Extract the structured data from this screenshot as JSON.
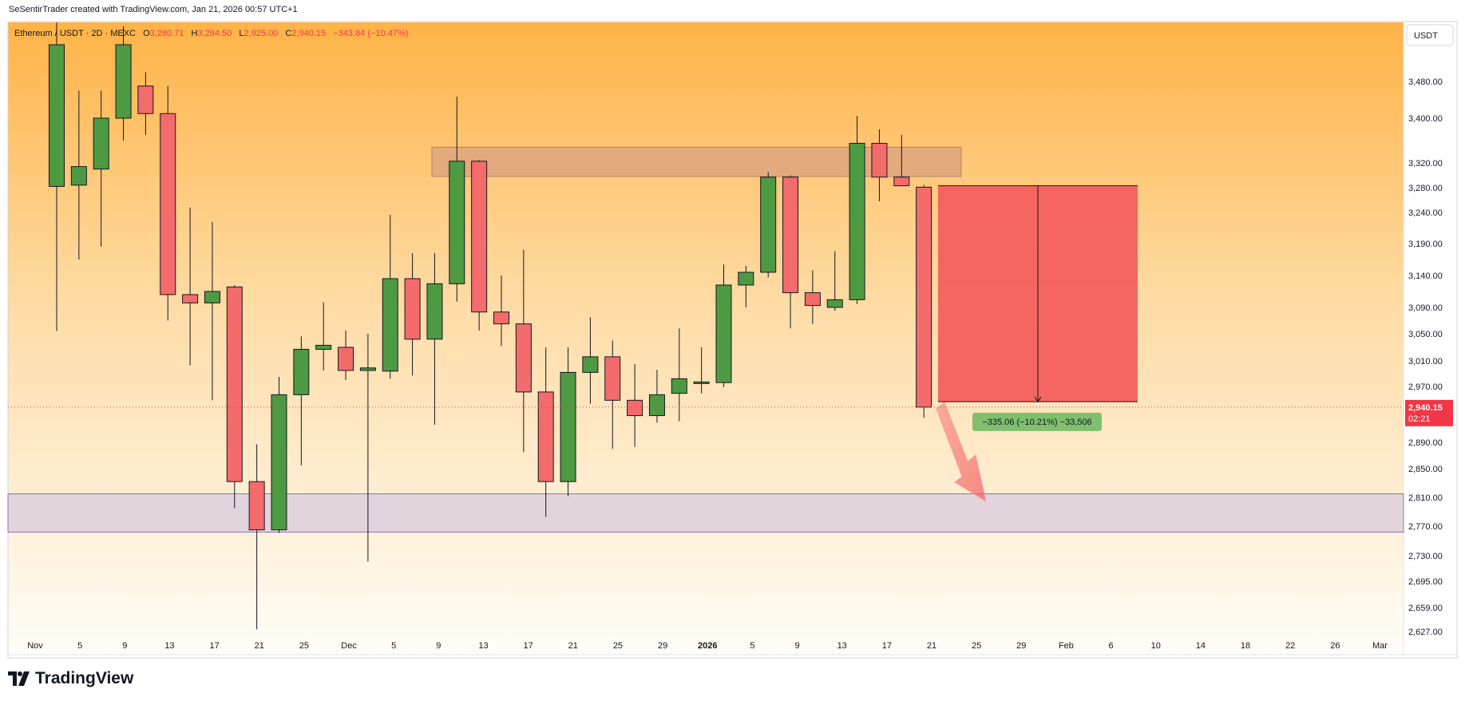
{
  "header": {
    "credit": "SeSentirTrader created with TradingView.com, Jan 21, 2026 00:57 UTC+1"
  },
  "chart_info": {
    "symbol": "Ethereum / USDT · 2D · MEXC",
    "ohlc": {
      "o_label": "O",
      "o": "3,280.71",
      "h_label": "H",
      "h": "3,284.50",
      "l_label": "L",
      "l": "2,925.00",
      "c_label": "C",
      "c": "2,940.15",
      "change": "−343.84 (−10.47%)"
    },
    "currency": "USDT"
  },
  "price_label": {
    "price": "2,940.15",
    "countdown": "02:21",
    "color": "#f23645"
  },
  "measure_label": "−335.06 (−10.21%) −33,506",
  "logo_text": "TradingView",
  "colors": {
    "up": "#4d9a43",
    "down": "#f36b6b",
    "bg_top": "#ffb347",
    "bg_bottom": "#fffdf8",
    "resistance": "#dea47e",
    "support": "#e2d4dd",
    "measure": "#f45b5b"
  },
  "chart_data": {
    "type": "candlestick",
    "y_axis_ticks": [
      "3,480.00",
      "3,400.00",
      "3,320.00",
      "3,280.00",
      "3,240.00",
      "3,190.00",
      "3,140.00",
      "3,090.00",
      "3,050.00",
      "3,010.00",
      "2,970.00",
      "2,890.00",
      "2,850.00",
      "2,810.00",
      "2,770.00",
      "2,730.00",
      "2,695.00",
      "2,659.00",
      "2,627.00"
    ],
    "x_axis_ticks": [
      "Nov",
      "5",
      "9",
      "13",
      "17",
      "21",
      "25",
      "Dec",
      "5",
      "9",
      "13",
      "17",
      "21",
      "25",
      "29",
      "2026",
      "5",
      "9",
      "13",
      "17",
      "21",
      "25",
      "29",
      "Feb",
      "6",
      "10",
      "14",
      "18",
      "22",
      "26",
      "Mar"
    ],
    "candles": [
      {
        "o": 3282,
        "h": 3650,
        "l": 3054,
        "c": 3560
      },
      {
        "o": 3284,
        "h": 3460,
        "l": 3165,
        "c": 3314
      },
      {
        "o": 3310,
        "h": 3460,
        "l": 3185,
        "c": 3400
      },
      {
        "o": 3400,
        "h": 3600,
        "l": 3360,
        "c": 3560
      },
      {
        "o": 3470,
        "h": 3500,
        "l": 3370,
        "c": 3410
      },
      {
        "o": 3410,
        "h": 3470,
        "l": 3070,
        "c": 3110
      },
      {
        "o": 3110,
        "h": 3248,
        "l": 3003,
        "c": 3097
      },
      {
        "o": 3097,
        "h": 3225,
        "l": 2950,
        "c": 3115
      },
      {
        "o": 3122,
        "h": 3125,
        "l": 2795,
        "c": 2832
      },
      {
        "o": 2832,
        "h": 2887,
        "l": 2630,
        "c": 2765
      },
      {
        "o": 2765,
        "h": 2985,
        "l": 2761,
        "c": 2958
      },
      {
        "o": 2958,
        "h": 3046,
        "l": 2855,
        "c": 3027
      },
      {
        "o": 3027,
        "h": 3098,
        "l": 2995,
        "c": 3033
      },
      {
        "o": 3030,
        "h": 3055,
        "l": 2980,
        "c": 2995
      },
      {
        "o": 2995,
        "h": 3050,
        "l": 2722,
        "c": 2999
      },
      {
        "o": 2994,
        "h": 3236,
        "l": 2982,
        "c": 3135
      },
      {
        "o": 3135,
        "h": 3175,
        "l": 2987,
        "c": 3042
      },
      {
        "o": 3042,
        "h": 3175,
        "l": 2915,
        "c": 3127
      },
      {
        "o": 3127,
        "h": 3447,
        "l": 3099,
        "c": 3323
      },
      {
        "o": 3323,
        "h": 3325,
        "l": 3055,
        "c": 3083
      },
      {
        "o": 3083,
        "h": 3140,
        "l": 3032,
        "c": 3065
      },
      {
        "o": 3065,
        "h": 3180,
        "l": 2875,
        "c": 2962
      },
      {
        "o": 2962,
        "h": 3030,
        "l": 2783,
        "c": 2832
      },
      {
        "o": 2832,
        "h": 3030,
        "l": 2812,
        "c": 2992
      },
      {
        "o": 2992,
        "h": 3075,
        "l": 2945,
        "c": 3016
      },
      {
        "o": 3016,
        "h": 3040,
        "l": 2880,
        "c": 2950
      },
      {
        "o": 2950,
        "h": 3005,
        "l": 2883,
        "c": 2928
      },
      {
        "o": 2928,
        "h": 2996,
        "l": 2918,
        "c": 2958
      },
      {
        "o": 2960,
        "h": 3058,
        "l": 2920,
        "c": 2982
      },
      {
        "o": 2977,
        "h": 3030,
        "l": 2960,
        "c": 2977
      },
      {
        "o": 2976,
        "h": 3157,
        "l": 2969,
        "c": 3125
      },
      {
        "o": 3125,
        "h": 3155,
        "l": 3090,
        "c": 3145
      },
      {
        "o": 3145,
        "h": 3305,
        "l": 3137,
        "c": 3297
      },
      {
        "o": 3297,
        "h": 3300,
        "l": 3058,
        "c": 3113
      },
      {
        "o": 3113,
        "h": 3148,
        "l": 3065,
        "c": 3093
      },
      {
        "o": 3090,
        "h": 3178,
        "l": 3085,
        "c": 3102
      },
      {
        "o": 3102,
        "h": 3405,
        "l": 3095,
        "c": 3355
      },
      {
        "o": 3355,
        "h": 3380,
        "l": 3258,
        "c": 3297
      },
      {
        "o": 3297,
        "h": 3370,
        "l": 3283,
        "c": 3283
      },
      {
        "o": 3280.71,
        "h": 3284.5,
        "l": 2925,
        "c": 2940.15
      }
    ],
    "zones": [
      {
        "name": "resistance",
        "from": 3298,
        "to": 3348
      },
      {
        "name": "support",
        "from": 2762,
        "to": 2815
      }
    ],
    "measurement": {
      "from": 3283,
      "to": 2948,
      "change": "−335.06 (−10.21%)"
    }
  }
}
